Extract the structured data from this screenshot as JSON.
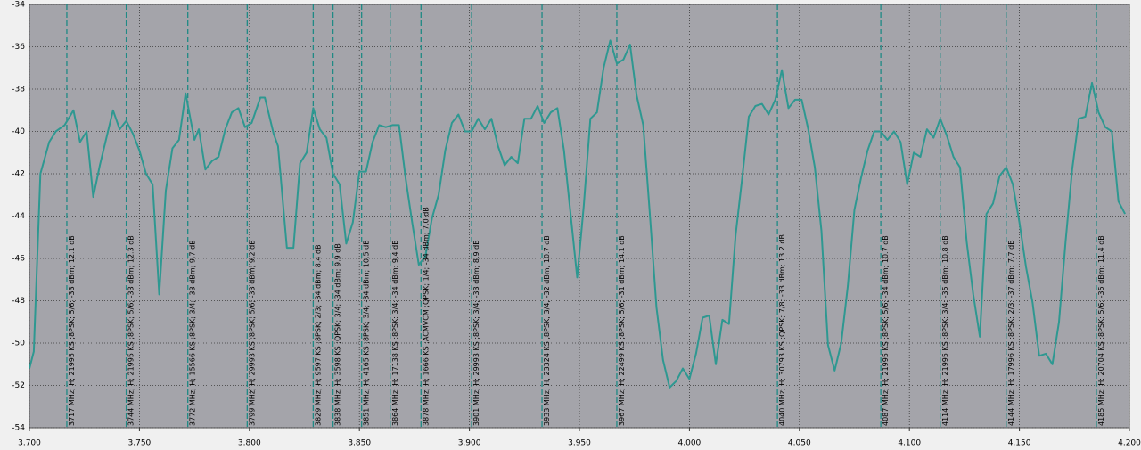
{
  "chart_data": {
    "type": "line",
    "color": "#2e9891",
    "marker_color": "#1f8a85",
    "grid": true,
    "xlim": [
      3.7,
      4.2
    ],
    "ylim": [
      -54,
      -34
    ],
    "xticks": [
      {
        "value": 3.7,
        "label": "3.700"
      },
      {
        "value": 3.75,
        "label": "3.750"
      },
      {
        "value": 3.8,
        "label": "3.800"
      },
      {
        "value": 3.85,
        "label": "3.850"
      },
      {
        "value": 3.9,
        "label": "3.900"
      },
      {
        "value": 3.95,
        "label": "3.950"
      },
      {
        "value": 4.0,
        "label": "4.000"
      },
      {
        "value": 4.05,
        "label": "4.050"
      },
      {
        "value": 4.1,
        "label": "4.100"
      },
      {
        "value": 4.15,
        "label": "4.150"
      },
      {
        "value": 4.2,
        "label": "4.200"
      }
    ],
    "yticks": [
      -54,
      -52,
      -50,
      -48,
      -46,
      -44,
      -42,
      -40,
      -38,
      -36,
      -34
    ],
    "x": [
      3.7,
      3.702,
      3.705,
      3.709,
      3.712,
      3.716,
      3.72,
      3.723,
      3.726,
      3.729,
      3.732,
      3.735,
      3.738,
      3.741,
      3.744,
      3.747,
      3.75,
      3.753,
      3.756,
      3.759,
      3.762,
      3.765,
      3.768,
      3.771,
      3.775,
      3.777,
      3.78,
      3.783,
      3.786,
      3.789,
      3.792,
      3.795,
      3.798,
      3.801,
      3.805,
      3.807,
      3.811,
      3.813,
      3.817,
      3.82,
      3.823,
      3.826,
      3.829,
      3.832,
      3.835,
      3.838,
      3.841,
      3.844,
      3.847,
      3.85,
      3.853,
      3.856,
      3.859,
      3.862,
      3.865,
      3.868,
      3.871,
      3.874,
      3.877,
      3.88,
      3.883,
      3.886,
      3.889,
      3.892,
      3.895,
      3.898,
      3.901,
      3.904,
      3.907,
      3.91,
      3.913,
      3.916,
      3.919,
      3.922,
      3.925,
      3.928,
      3.931,
      3.934,
      3.937,
      3.94,
      3.943,
      3.949,
      3.952,
      3.955,
      3.958,
      3.961,
      3.964,
      3.967,
      3.97,
      3.973,
      3.976,
      3.979,
      3.982,
      3.985,
      3.988,
      3.991,
      3.994,
      3.997,
      4.0,
      4.003,
      4.006,
      4.009,
      4.012,
      4.015,
      4.018,
      4.021,
      4.024,
      4.027,
      4.03,
      4.033,
      4.036,
      4.039,
      4.042,
      4.045,
      4.048,
      4.051,
      4.054,
      4.057,
      4.06,
      4.063,
      4.066,
      4.069,
      4.072,
      4.075,
      4.078,
      4.081,
      4.084,
      4.087,
      4.09,
      4.093,
      4.096,
      4.099,
      4.102,
      4.105,
      4.108,
      4.111,
      4.114,
      4.117,
      4.12,
      4.123,
      4.126,
      4.129,
      4.132,
      4.135,
      4.138,
      4.141,
      4.144,
      4.147,
      4.15,
      4.153,
      4.156,
      4.159,
      4.162,
      4.165,
      4.168,
      4.171,
      4.174,
      4.177,
      4.18,
      4.183,
      4.186,
      4.189,
      4.192,
      4.195,
      4.198
    ],
    "values": [
      -51.2,
      -50.4,
      -42.0,
      -40.5,
      -40.0,
      -39.7,
      -39.0,
      -40.5,
      -40.0,
      -43.1,
      -41.6,
      -40.3,
      -39.0,
      -39.9,
      -39.5,
      -40.1,
      -40.9,
      -42.0,
      -42.5,
      -47.7,
      -42.8,
      -40.8,
      -40.4,
      -38.2,
      -40.4,
      -39.9,
      -41.8,
      -41.4,
      -41.2,
      -39.9,
      -39.1,
      -38.9,
      -39.8,
      -39.6,
      -38.4,
      -38.4,
      -40.1,
      -40.7,
      -45.5,
      -45.5,
      -41.5,
      -41.0,
      -38.9,
      -39.9,
      -40.3,
      -42.0,
      -42.5,
      -45.3,
      -44.3,
      -41.9,
      -41.9,
      -40.5,
      -39.7,
      -39.8,
      -39.7,
      -39.7,
      -42.2,
      -44.3,
      -46.3,
      -45.9,
      -44.1,
      -43.0,
      -40.9,
      -39.6,
      -39.2,
      -40.0,
      -40.0,
      -39.4,
      -39.9,
      -39.4,
      -40.7,
      -41.6,
      -41.2,
      -41.5,
      -39.4,
      -39.4,
      -38.8,
      -39.6,
      -39.1,
      -38.9,
      -40.9,
      -46.9,
      -43.5,
      -39.4,
      -39.1,
      -37.0,
      -35.7,
      -36.8,
      -36.6,
      -35.9,
      -38.3,
      -39.7,
      -43.9,
      -48.3,
      -50.8,
      -52.1,
      -51.8,
      -51.2,
      -51.7,
      -50.5,
      -48.8,
      -48.7,
      -51.0,
      -48.9,
      -49.1,
      -44.9,
      -42.2,
      -39.3,
      -38.8,
      -38.7,
      -39.2,
      -38.5,
      -37.1,
      -38.9,
      -38.5,
      -38.5,
      -39.9,
      -41.7,
      -44.7,
      -50.1,
      -51.3,
      -50.0,
      -47.3,
      -43.7,
      -42.2,
      -40.9,
      -40.0,
      -40.0,
      -40.4,
      -40.0,
      -40.5,
      -42.5,
      -41.0,
      -41.2,
      -39.9,
      -40.3,
      -39.4,
      -40.2,
      -41.2,
      -41.7,
      -45.2,
      -47.7,
      -49.7,
      -43.9,
      -43.4,
      -42.1,
      -41.7,
      -42.5,
      -44.3,
      -46.4,
      -48.1,
      -50.6,
      -50.5,
      -51.0,
      -49.0,
      -45.2,
      -41.8,
      -39.4,
      -39.3,
      -37.7,
      -39.1,
      -39.8,
      -40.0,
      -43.3,
      -43.9
    ],
    "markers": [
      {
        "x": 3.717,
        "label": "3717 MHz; H; 21995 KS ;8PSK; 5/6; -33 dBm; 12.1 dB"
      },
      {
        "x": 3.744,
        "label": "3744 MHz; H; 21995 KS ;8PSK; 5/6; -33 dBm; 12.3 dB"
      },
      {
        "x": 3.772,
        "label": "3772 MHz; H; 15566 KS ;8PSK; 3/4; -33 dBm; 9.7 dB"
      },
      {
        "x": 3.799,
        "label": "3799 MHz; H; 29993 KS ;8PSK; 5/6; -33 dBm; 9.2 dB"
      },
      {
        "x": 3.829,
        "label": "3829 MHz; H; 9597 KS ;8PSK; 2/3; -34 dBm; 8.4 dB"
      },
      {
        "x": 3.838,
        "label": "3838 MHz; H; 3598 KS ;QPSK; 3/4; -34 dBm; 9.9 dB"
      },
      {
        "x": 3.851,
        "label": "3851 MHz; H; 4165 KS ;8PSK; 3/4; -34 dBm; 10.5 dB"
      },
      {
        "x": 3.864,
        "label": "3864 MHz; H; 17138 KS ;8PSK; 3/4; -34 dBm; 9.4 dB"
      },
      {
        "x": 3.878,
        "label": "3878 MHz; H; 1666 KS ;ACMVCM ;QPSK; 1/4; -34 dBm; 7.0 dB"
      },
      {
        "x": 3.901,
        "label": "3901 MHz; H; 29993 KS ;8PSK; 3/4; -33 dBm; 8.9 dB"
      },
      {
        "x": 3.933,
        "label": "3933 MHz; H; 23324 KS ;8PSK; 3/4; -32 dBm; 10.7 dB"
      },
      {
        "x": 3.967,
        "label": "3967 MHz; H; 22499 KS ;8PSK; 5/6; -31 dBm; 14.1 dB"
      },
      {
        "x": 4.04,
        "label": "4040 MHz; H; 30793 KS ;QPSK; 7/8; -33 dBm; 13.2 dB"
      },
      {
        "x": 4.087,
        "label": "4087 MHz; H; 21995 KS ;8PSK; 5/6; -34 dBm; 10.7 dB"
      },
      {
        "x": 4.114,
        "label": "4114 MHz; H; 21995 KS ;8PSK; 3/4; -35 dBm; 10.8 dB"
      },
      {
        "x": 4.144,
        "label": "4144 MHz; H; 17996 KS ;8PSK; 2/3; -37 dBm; 7.7 dB"
      },
      {
        "x": 4.185,
        "label": "4185 MHz; H; 20704 KS ;8PSK; 5/6; -35 dBm; 11.4 dB"
      }
    ]
  }
}
